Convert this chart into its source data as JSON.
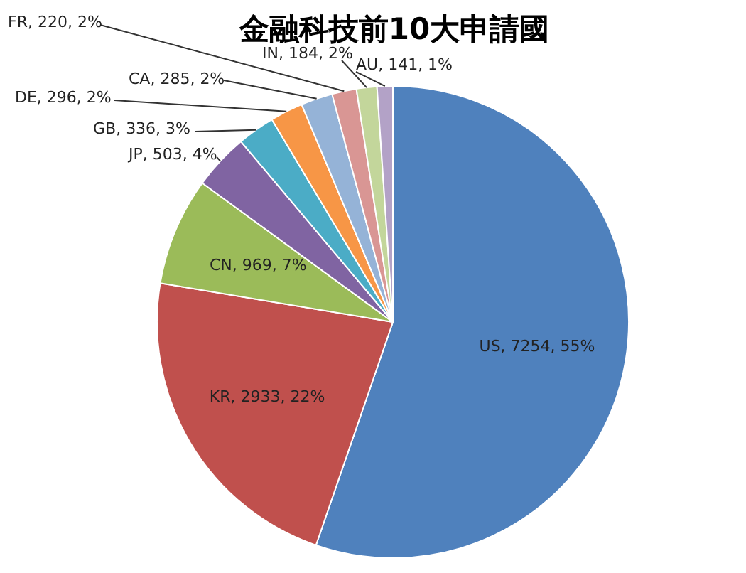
{
  "chart_data": {
    "type": "pie",
    "title": "金融科技前10大申請國",
    "categories": [
      "US",
      "KR",
      "CN",
      "JP",
      "GB",
      "DE",
      "CA",
      "FR",
      "IN",
      "AU"
    ],
    "values": [
      7254,
      2933,
      969,
      503,
      336,
      296,
      285,
      220,
      184,
      141
    ],
    "colors": [
      "#4f81bd",
      "#c0504d",
      "#9bbb59",
      "#8064a2",
      "#4bacc6",
      "#f79646",
      "#95b3d7",
      "#d99694",
      "#c3d69b",
      "#b3a2c7"
    ],
    "value_labels": [
      "7254, 55%",
      "2933, 22%",
      "969, 7%",
      "503, 4%",
      "336, 3%",
      "296, 2%",
      "285, 2%",
      "220, 2%",
      "184, 2%",
      "141, 1%"
    ]
  }
}
